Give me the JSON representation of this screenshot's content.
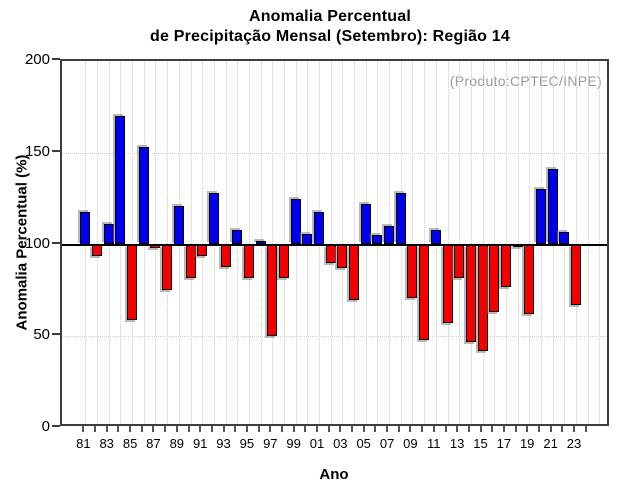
{
  "header": {
    "title_line1": "Anomalia Percentual",
    "title_line2": "de Precipitação Mensal (Setembro): Região 14"
  },
  "chart_data": {
    "type": "bar",
    "title": "Anomalia Percentual de Precipitação Mensal (Setembro): Região 14",
    "annotation": "(Produto:CPTEC/INPE)",
    "xlabel": "Ano",
    "ylabel": "Anomalia Percentual (%)",
    "ylim": [
      0,
      200
    ],
    "yticks": [
      0,
      50,
      100,
      150,
      200
    ],
    "baseline": 100,
    "grid": "dotted vertical line per year; dotted horizontal lines at 50, 100, 150",
    "legend_position": "none",
    "bar_color_above_baseline": "#0000EE",
    "bar_color_below_baseline": "#F40000",
    "x_domain": [
      1979,
      2026
    ],
    "categories": [
      1981,
      1982,
      1983,
      1984,
      1985,
      1986,
      1987,
      1988,
      1989,
      1990,
      1991,
      1992,
      1993,
      1994,
      1995,
      1996,
      1997,
      1998,
      1999,
      2000,
      2001,
      2002,
      2003,
      2004,
      2005,
      2006,
      2007,
      2008,
      2009,
      2010,
      2011,
      2012,
      2013,
      2014,
      2015,
      2016,
      2017,
      2018,
      2019,
      2020,
      2021,
      2022,
      2023
    ],
    "x_tick_labels": [
      "81",
      "83",
      "85",
      "87",
      "89",
      "91",
      "93",
      "95",
      "97",
      "99",
      "01",
      "03",
      "05",
      "07",
      "09",
      "11",
      "13",
      "15",
      "17",
      "19",
      "21",
      "23"
    ],
    "values": [
      118,
      94,
      111,
      170,
      59,
      153,
      98,
      75,
      121,
      82,
      94,
      128,
      88,
      108,
      82,
      102,
      50,
      82,
      125,
      106,
      118,
      90,
      87,
      70,
      122,
      105,
      110,
      128,
      71,
      48,
      108,
      57,
      82,
      47,
      42,
      63,
      77,
      99,
      62,
      130,
      141,
      107,
      67
    ]
  }
}
